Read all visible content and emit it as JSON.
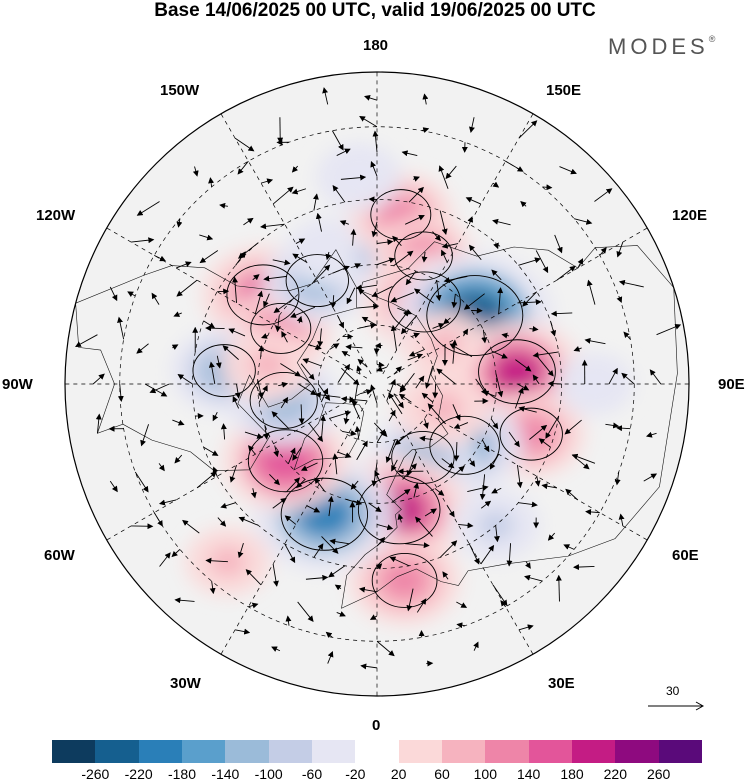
{
  "title": "Base 14/06/2025 00 UTC, valid 19/06/2025 00 UTC",
  "logo": "MODES",
  "logo_mark": "®",
  "longitude_labels": {
    "top": "180",
    "bottom": "0",
    "left": "90W",
    "right": "90E",
    "upper_left_1": "150W",
    "upper_left_2": "120W",
    "upper_right_1": "150E",
    "upper_right_2": "120E",
    "lower_left_1": "60W",
    "lower_left_2": "30W",
    "lower_right_1": "60E",
    "lower_right_2": "30E"
  },
  "reference_vector": "30",
  "colorbar": {
    "colors": [
      "#0d3b5e",
      "#155f8f",
      "#2a7fb8",
      "#5a9fcc",
      "#9bbbd9",
      "#c4cde6",
      "#e6e6f3",
      "#ffffff",
      "#fbd9d9",
      "#f6b3bf",
      "#ee85a8",
      "#e3559a",
      "#c41c84",
      "#8e0a7f",
      "#5a0a7a"
    ],
    "tick_labels": [
      "-260",
      "-220",
      "-180",
      "-140",
      "-100",
      "-60",
      "-20",
      "20",
      "60",
      "100",
      "140",
      "180",
      "220",
      "260"
    ]
  },
  "anomaly_cells": [
    {
      "lat": 54,
      "lon": -128,
      "value": 160
    },
    {
      "lat": 62,
      "lon": -120,
      "value": 110
    },
    {
      "lat": 60,
      "lon": -150,
      "value": -120
    },
    {
      "lat": 55,
      "lon": -160,
      "value": -60
    },
    {
      "lat": 58,
      "lon": -178,
      "value": -90
    },
    {
      "lat": 48,
      "lon": 172,
      "value": 110
    },
    {
      "lat": 40,
      "lon": -175,
      "value": -60
    },
    {
      "lat": 56,
      "lon": 160,
      "value": 100
    },
    {
      "lat": 66,
      "lon": 150,
      "value": 160
    },
    {
      "lat": 60,
      "lon": 125,
      "value": -260
    },
    {
      "lat": 55,
      "lon": 95,
      "value": 180
    },
    {
      "lat": 50,
      "lon": 72,
      "value": 120
    },
    {
      "lat": 63,
      "lon": 55,
      "value": -150
    },
    {
      "lat": 68,
      "lon": 32,
      "value": -120
    },
    {
      "lat": 58,
      "lon": 10,
      "value": 200
    },
    {
      "lat": 42,
      "lon": 8,
      "value": 130
    },
    {
      "lat": 55,
      "lon": -22,
      "value": -220
    },
    {
      "lat": 60,
      "lon": -50,
      "value": 170
    },
    {
      "lat": 66,
      "lon": -80,
      "value": -140
    },
    {
      "lat": 52,
      "lon": -95,
      "value": -120
    },
    {
      "lat": 62,
      "lon": -100,
      "value": 80
    },
    {
      "lat": 72,
      "lon": 70,
      "value": 90
    },
    {
      "lat": 45,
      "lon": 40,
      "value": -70
    },
    {
      "lat": 38,
      "lon": 90,
      "value": -40
    },
    {
      "lat": 70,
      "lon": 120,
      "value": 60
    },
    {
      "lat": 35,
      "lon": -40,
      "value": 60
    }
  ]
}
